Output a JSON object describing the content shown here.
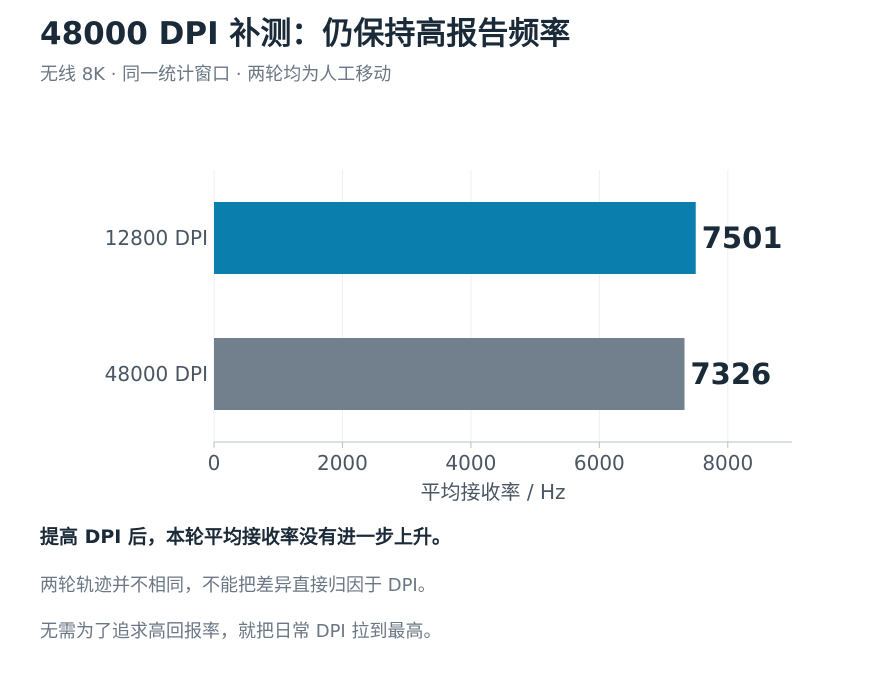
{
  "header": {
    "title": "48000 DPI 补测：仍保持高报告频率",
    "subtitle": "无线 8K · 同一统计窗口 · 两轮均为人工移动"
  },
  "chart_data": {
    "type": "bar",
    "orientation": "horizontal",
    "categories": [
      "12800 DPI",
      "48000 DPI"
    ],
    "values": [
      7501,
      7326
    ],
    "value_labels": [
      "7501",
      "7326"
    ],
    "colors": [
      "#0a7fae",
      "#72808e"
    ],
    "title": "",
    "xlabel": "平均接收率 / Hz",
    "ylabel": "",
    "xlim": [
      0,
      9000
    ],
    "xticks": [
      0,
      2000,
      4000,
      6000,
      8000
    ],
    "xtick_labels": [
      "0",
      "2000",
      "4000",
      "6000",
      "8000"
    ],
    "grid": "vertical",
    "legend": "none"
  },
  "notes": {
    "main": "提高 DPI 后，本轮平均接收率没有进一步上升。",
    "line1": "两轮轨迹并不相同，不能把差异直接归因于 DPI。",
    "line2": "无需为了追求高回报率，就把日常 DPI 拉到最高。"
  }
}
